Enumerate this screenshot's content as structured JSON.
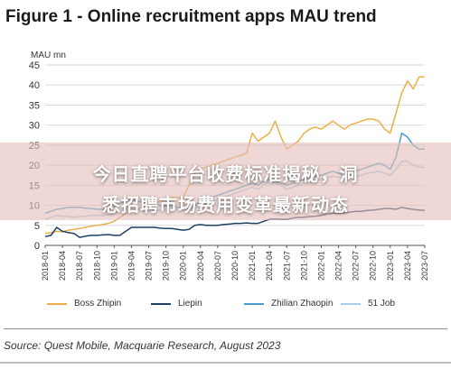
{
  "figure": {
    "title": "Figure 1 - Online recruitment apps MAU trend",
    "source": "Source: Quest Mobile, Macquarie Research, August 2023"
  },
  "overlay": {
    "line1": "今日直聘平台收费标准揭秘，洞",
    "line2": "悉招聘市场费用变革最新动态"
  },
  "chart_data": {
    "type": "line",
    "ylabel": "MAU mn",
    "ylim": [
      0,
      45
    ],
    "yticks": [
      0,
      5,
      10,
      15,
      20,
      25,
      30,
      35,
      40,
      45
    ],
    "xtick_labels": [
      "2018-01",
      "2018-04",
      "2018-07",
      "2018-10",
      "2019-01",
      "2019-04",
      "2019-07",
      "2019-10",
      "2020-01",
      "2020-04",
      "2020-07",
      "2020-10",
      "2021-01",
      "2021-04",
      "2021-07",
      "2021-10",
      "2022-01",
      "2022-04",
      "2022-07",
      "2022-10",
      "2023-01",
      "2023-04",
      "2023-07"
    ],
    "grid": true,
    "legend_position": "bottom",
    "x": [
      "2018-01",
      "2018-02",
      "2018-03",
      "2018-04",
      "2018-05",
      "2018-06",
      "2018-07",
      "2018-08",
      "2018-09",
      "2018-10",
      "2018-11",
      "2018-12",
      "2019-01",
      "2019-02",
      "2019-03",
      "2019-04",
      "2019-05",
      "2019-06",
      "2019-07",
      "2019-08",
      "2019-09",
      "2019-10",
      "2019-11",
      "2019-12",
      "2020-01",
      "2020-02",
      "2020-03",
      "2020-04",
      "2020-05",
      "2020-06",
      "2020-07",
      "2020-08",
      "2020-09",
      "2020-10",
      "2020-11",
      "2020-12",
      "2021-01",
      "2021-02",
      "2021-03",
      "2021-04",
      "2021-05",
      "2021-06",
      "2021-07",
      "2021-08",
      "2021-09",
      "2021-10",
      "2021-11",
      "2021-12",
      "2022-01",
      "2022-02",
      "2022-03",
      "2022-04",
      "2022-05",
      "2022-06",
      "2022-07",
      "2022-08",
      "2022-09",
      "2022-10",
      "2022-11",
      "2022-12",
      "2023-01",
      "2023-02",
      "2023-03",
      "2023-04",
      "2023-05",
      "2023-06",
      "2023-07"
    ],
    "series": [
      {
        "name": "Boss Zhipin",
        "color": "#e8b04a",
        "values": [
          3,
          3.2,
          3.5,
          3.4,
          3.8,
          4,
          4.2,
          4.5,
          4.8,
          5,
          5.2,
          5.5,
          6,
          7,
          8,
          8.5,
          9,
          9.5,
          10,
          10.5,
          11,
          11.5,
          12,
          12,
          12,
          15,
          18,
          19,
          19.5,
          20,
          20.5,
          21,
          21.5,
          22,
          22.5,
          23,
          28,
          26,
          27,
          28,
          31,
          27,
          24,
          25,
          26,
          28,
          29,
          29.5,
          29,
          30,
          31,
          30,
          29,
          30,
          30.5,
          31,
          31.5,
          31.5,
          31,
          29,
          28,
          33,
          38,
          41,
          39,
          42,
          42
        ]
      },
      {
        "name": "Liepin",
        "color": "#1f3f66",
        "values": [
          2.2,
          2.5,
          4.5,
          3.5,
          3.2,
          3,
          2,
          2.3,
          2.5,
          2.5,
          2.6,
          2.7,
          2.5,
          2.5,
          3.5,
          4.5,
          4.5,
          4.5,
          4.5,
          4.5,
          4.3,
          4.2,
          4.2,
          4,
          3.8,
          4,
          5,
          5.2,
          5,
          5,
          5,
          5.2,
          5.3,
          5.5,
          5.5,
          5.6,
          5.5,
          5.5,
          6,
          6.5,
          6.6,
          6.5,
          6.5,
          6.8,
          7,
          7,
          7.2,
          7.3,
          7.5,
          7.8,
          8,
          8,
          8.1,
          8.3,
          8.5,
          8.5,
          8.7,
          8.8,
          9,
          9.2,
          9.2,
          9,
          9.5,
          9.2,
          9,
          8.8,
          8.7
        ]
      },
      {
        "name": "Zhilian Zhaopin",
        "color": "#4a9fc8",
        "values": [
          8,
          8.5,
          9,
          9.2,
          9.5,
          9.5,
          9.5,
          9.3,
          9.2,
          9,
          9,
          9,
          9.5,
          10.5,
          11,
          11.5,
          11,
          10.8,
          10.5,
          10.3,
          10,
          9.8,
          10,
          9.5,
          9.5,
          9,
          10,
          11,
          11.5,
          12,
          12.5,
          13,
          13.5,
          14,
          14.5,
          15,
          15.5,
          15,
          16,
          16.5,
          16,
          15.5,
          15,
          15.5,
          16,
          16.5,
          17,
          17.2,
          17.5,
          18,
          18.5,
          18,
          17.5,
          18,
          18.5,
          19,
          19.5,
          20,
          20.5,
          20,
          19,
          22,
          28,
          27,
          25,
          24,
          24
        ]
      },
      {
        "name": "51 Job",
        "color": "#a9cde8",
        "values": [
          6.5,
          7,
          7.5,
          7.3,
          7.2,
          7,
          7.2,
          7.3,
          7.5,
          7.5,
          7.5,
          7.6,
          8,
          8.5,
          9,
          9.2,
          9,
          8.8,
          8.5,
          8.7,
          8.8,
          9,
          9.2,
          9,
          9,
          8.8,
          9.5,
          10,
          10.5,
          11,
          11.5,
          12,
          12.5,
          13,
          13.5,
          14,
          14.5,
          14,
          15,
          16,
          15.5,
          15,
          14,
          14.5,
          15,
          15.5,
          16,
          16.2,
          16.5,
          17,
          17.2,
          17,
          16.8,
          17,
          17.2,
          17.5,
          18,
          18.2,
          18.5,
          18,
          17.5,
          19,
          21,
          21,
          20,
          19.5,
          19.5
        ]
      }
    ]
  }
}
